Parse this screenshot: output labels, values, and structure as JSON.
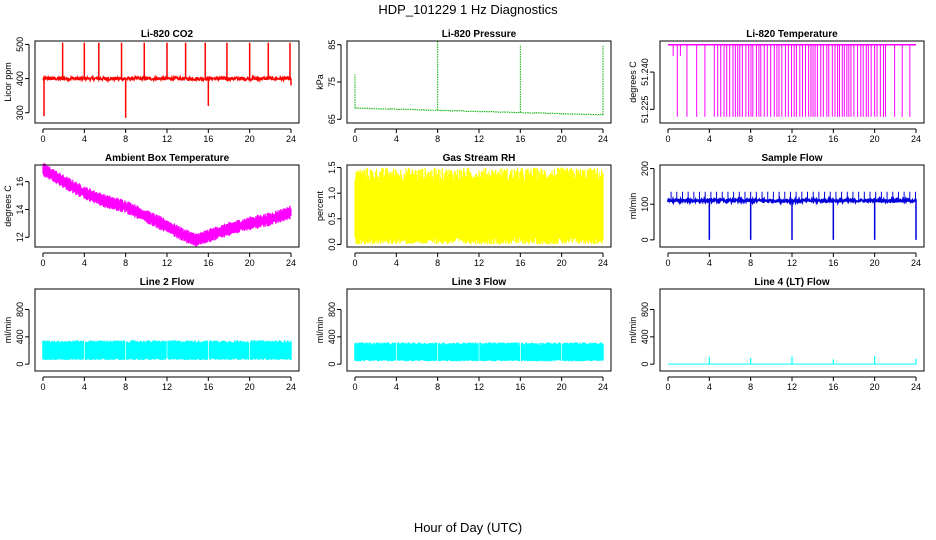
{
  "figure": {
    "title": "HDP_101229  1 Hz Diagnostics",
    "xlabel": "Hour of Day (UTC)"
  },
  "chart_data": [
    {
      "type": "line",
      "title": "Li-820 CO2",
      "ylabel": "Licor ppm",
      "color": "#ff0000",
      "xlim": [
        0,
        24
      ],
      "ylim": [
        270,
        510
      ],
      "xticks": [
        "0",
        "4",
        "8",
        "12",
        "16",
        "20",
        "24"
      ],
      "yticks": [
        "300",
        "400",
        "500"
      ],
      "series": [
        {
          "name": "CO2",
          "baseline": 400,
          "noise": 10,
          "spikes": [
            [
              0.1,
              290
            ],
            [
              1.9,
              505
            ],
            [
              4,
              505
            ],
            [
              5.4,
              505
            ],
            [
              7.6,
              505
            ],
            [
              8,
              285
            ],
            [
              9.8,
              505
            ],
            [
              12,
              505
            ],
            [
              13.8,
              505
            ],
            [
              15.7,
              505
            ],
            [
              16,
              320
            ],
            [
              17.8,
              505
            ],
            [
              20,
              505
            ],
            [
              21.8,
              505
            ],
            [
              23.9,
              505
            ],
            [
              24,
              380
            ]
          ]
        }
      ]
    },
    {
      "type": "line",
      "title": "Li-820 Pressure",
      "ylabel": "kPa",
      "color": "#00b000",
      "xlim": [
        0,
        24
      ],
      "ylim": [
        64,
        86
      ],
      "xticks": [
        "0",
        "4",
        "8",
        "12",
        "16",
        "20",
        "24"
      ],
      "yticks": [
        "65",
        "75",
        "85"
      ],
      "series": [
        {
          "name": "Pressure",
          "start": 68,
          "end": 66.2,
          "noise": 0.2,
          "spikes": [
            [
              0,
              77
            ],
            [
              8,
              86
            ],
            [
              16,
              85
            ],
            [
              24,
              85
            ]
          ]
        }
      ]
    },
    {
      "type": "line",
      "title": "Li-820 Temperature",
      "ylabel": "degrees C",
      "color": "#ff00ff",
      "xlim": [
        0,
        24
      ],
      "ylim": [
        51.2195,
        51.2525
      ],
      "xticks": [
        "0",
        "4",
        "8",
        "12",
        "16",
        "20",
        "24"
      ],
      "yticks": [
        "51.225",
        "51.240"
      ],
      "series": [
        {
          "name": "Temperature",
          "high": 51.251,
          "low": 51.222,
          "steps": 51.2465
        }
      ]
    },
    {
      "type": "line",
      "title": "Ambient Box Temperature",
      "ylabel": "degrees C",
      "color": "#ff00ff",
      "xlim": [
        0,
        24
      ],
      "ylim": [
        11.3,
        17.2
      ],
      "xticks": [
        "0",
        "4",
        "8",
        "12",
        "16",
        "20",
        "24"
      ],
      "yticks": [
        "12",
        "14",
        "16"
      ],
      "series": [
        {
          "name": "Ambient",
          "points": [
            [
              0,
              16.9
            ],
            [
              2,
              16.0
            ],
            [
              4,
              15.2
            ],
            [
              6,
              14.6
            ],
            [
              8,
              14.2
            ],
            [
              10,
              13.5
            ],
            [
              12,
              12.8
            ],
            [
              13.5,
              12.2
            ],
            [
              14.8,
              11.8
            ],
            [
              16,
              12.1
            ],
            [
              18,
              12.6
            ],
            [
              20,
              13.0
            ],
            [
              22,
              13.3
            ],
            [
              24,
              13.8
            ]
          ],
          "band": 0.45
        }
      ]
    },
    {
      "type": "area",
      "title": "Gas Stream RH",
      "ylabel": "percent",
      "color": "#ffff00",
      "xlim": [
        0,
        24
      ],
      "ylim": [
        -0.05,
        1.55
      ],
      "xticks": [
        "0",
        "4",
        "8",
        "12",
        "16",
        "20",
        "24"
      ],
      "yticks": [
        "0.0",
        "0.5",
        "1.0",
        "1.5"
      ],
      "series": [
        {
          "name": "RH",
          "lower": 0.15,
          "upper": 1.35,
          "variation": 0.15
        }
      ]
    },
    {
      "type": "line",
      "title": "Sample Flow",
      "ylabel": "ml/min",
      "color": "#0000dd",
      "xlim": [
        0,
        24
      ],
      "ylim": [
        -20,
        210
      ],
      "xticks": [
        "0",
        "4",
        "8",
        "12",
        "16",
        "20",
        "24"
      ],
      "yticks": [
        "0",
        "100",
        "200"
      ],
      "series": [
        {
          "name": "Flow",
          "baseline": 110,
          "noise": 8,
          "upper": 135,
          "dips": [
            [
              4,
              0
            ],
            [
              8,
              0
            ],
            [
              12,
              0
            ],
            [
              16,
              0
            ],
            [
              20,
              0
            ],
            [
              24,
              0
            ]
          ]
        }
      ]
    },
    {
      "type": "area",
      "title": "Line 2 Flow",
      "ylabel": "ml/min",
      "color": "#00ffff",
      "xlim": [
        0,
        24
      ],
      "ylim": [
        -100,
        1100
      ],
      "xticks": [
        "0",
        "4",
        "8",
        "12",
        "16",
        "20",
        "24"
      ],
      "yticks": [
        "0",
        "400",
        "800"
      ],
      "series": [
        {
          "name": "Line2",
          "lower": 90,
          "upper": 330,
          "gaps": [
            4,
            8,
            12,
            16,
            20
          ]
        }
      ]
    },
    {
      "type": "area",
      "title": "Line 3 Flow",
      "ylabel": "ml/min",
      "color": "#00ffff",
      "xlim": [
        0,
        24
      ],
      "ylim": [
        -100,
        1100
      ],
      "xticks": [
        "0",
        "4",
        "8",
        "12",
        "16",
        "20",
        "24"
      ],
      "yticks": [
        "0",
        "400",
        "800"
      ],
      "series": [
        {
          "name": "Line3",
          "lower": 70,
          "upper": 300,
          "gaps": [
            4,
            8,
            12,
            16,
            20
          ]
        }
      ]
    },
    {
      "type": "line",
      "title": "Line 4 (LT) Flow",
      "ylabel": "ml/min",
      "color": "#00ffff",
      "xlim": [
        0,
        24
      ],
      "ylim": [
        -100,
        1100
      ],
      "xticks": [
        "0",
        "4",
        "8",
        "12",
        "16",
        "20",
        "24"
      ],
      "yticks": [
        "0",
        "400",
        "800"
      ],
      "series": [
        {
          "name": "Line4",
          "baseline": 0,
          "spikes": [
            [
              4,
              110
            ],
            [
              8,
              90
            ],
            [
              12,
              110
            ],
            [
              16,
              70
            ],
            [
              20,
              120
            ],
            [
              24,
              80
            ]
          ]
        }
      ]
    }
  ]
}
